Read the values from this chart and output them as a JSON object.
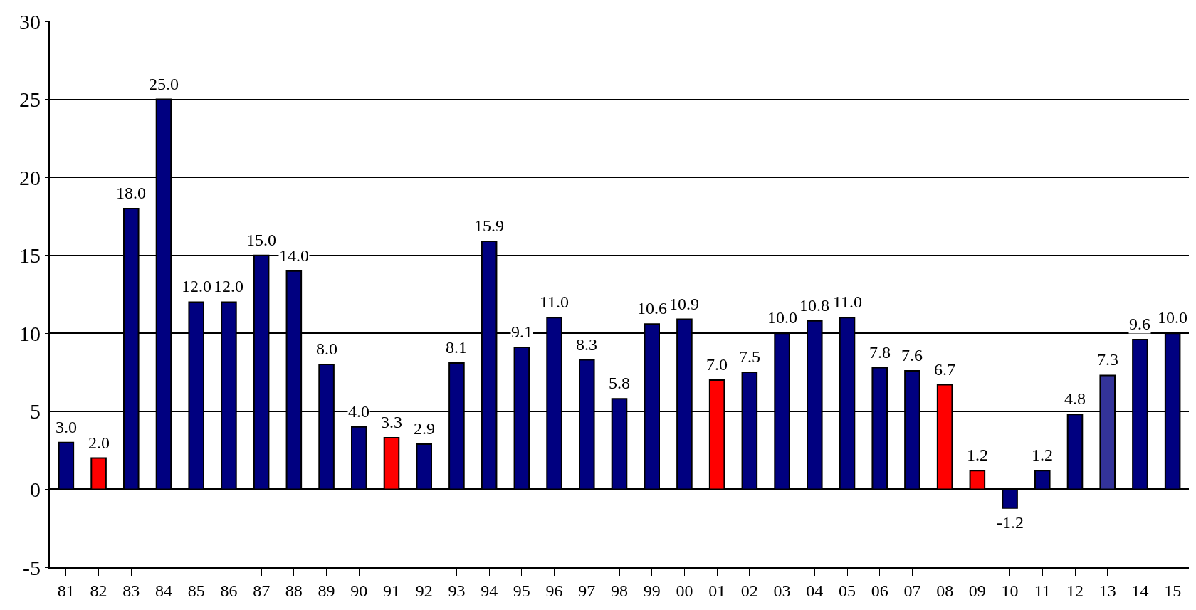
{
  "chart_data": {
    "type": "bar",
    "categories": [
      "81",
      "82",
      "83",
      "84",
      "85",
      "86",
      "87",
      "88",
      "89",
      "90",
      "91",
      "92",
      "93",
      "94",
      "95",
      "96",
      "97",
      "98",
      "99",
      "00",
      "01",
      "02",
      "03",
      "04",
      "05",
      "06",
      "07",
      "08",
      "09",
      "10",
      "11",
      "12",
      "13",
      "14",
      "15"
    ],
    "values": [
      3.0,
      2.0,
      18.0,
      25.0,
      12.0,
      12.0,
      15.0,
      14.0,
      8.0,
      4.0,
      3.3,
      2.9,
      8.1,
      15.9,
      9.1,
      11.0,
      8.3,
      5.8,
      10.6,
      10.9,
      7.0,
      7.5,
      10.0,
      10.8,
      11.0,
      7.8,
      7.6,
      6.7,
      1.2,
      -1.2,
      1.2,
      4.8,
      7.3,
      9.6,
      10.0
    ],
    "value_labels": [
      "3.0",
      "2.0",
      "18.0",
      "25.0",
      "12.0",
      "12.0",
      "15.0",
      "14.0",
      "8.0",
      "4.0",
      "3.3",
      "2.9",
      "8.1",
      "15.9",
      "9.1",
      "11.0",
      "8.3",
      "5.8",
      "10.6",
      "10.9",
      "7.0",
      "7.5",
      "10.0",
      "10.8",
      "11.0",
      "7.8",
      "7.6",
      "6.7",
      "1.2",
      "-1.2",
      "1.2",
      "4.8",
      "7.3",
      "9.6",
      "10.0"
    ],
    "colors": [
      "#000080",
      "#ff0000",
      "#000080",
      "#000080",
      "#000080",
      "#000080",
      "#000080",
      "#000080",
      "#000080",
      "#000080",
      "#ff0000",
      "#000080",
      "#000080",
      "#000080",
      "#000080",
      "#000080",
      "#000080",
      "#000080",
      "#000080",
      "#000080",
      "#ff0000",
      "#000080",
      "#000080",
      "#000080",
      "#000080",
      "#000080",
      "#000080",
      "#ff0000",
      "#ff0000",
      "#000080",
      "#000080",
      "#000080",
      "#333399",
      "#000080",
      "#000080"
    ],
    "ylim": [
      -5,
      30
    ],
    "yticks": [
      -5,
      0,
      5,
      10,
      15,
      20,
      25,
      30
    ],
    "grid": "y"
  }
}
